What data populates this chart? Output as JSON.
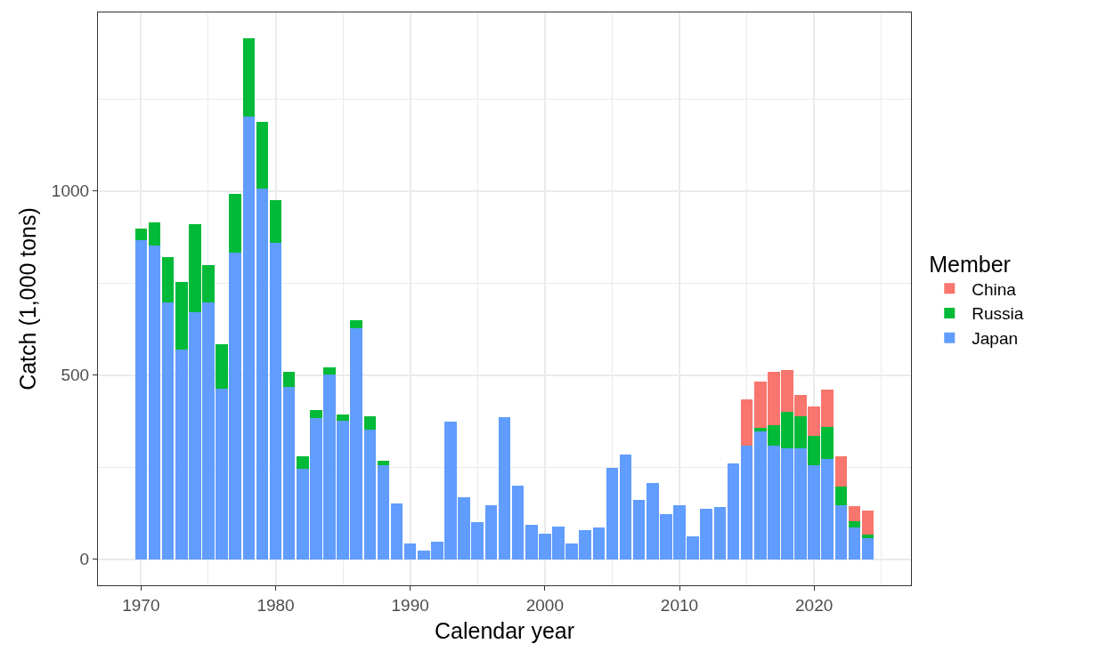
{
  "chart_data": {
    "type": "bar",
    "stacked": true,
    "xlabel": "Calendar year",
    "ylabel": "Catch (1,000 tons)",
    "legend_title": "Member",
    "legend": "right",
    "grid": true,
    "x": [
      1970,
      1971,
      1972,
      1973,
      1974,
      1975,
      1976,
      1977,
      1978,
      1979,
      1980,
      1981,
      1982,
      1983,
      1984,
      1985,
      1986,
      1987,
      1988,
      1989,
      1990,
      1991,
      1992,
      1993,
      1994,
      1995,
      1996,
      1997,
      1998,
      1999,
      2000,
      2001,
      2002,
      2003,
      2004,
      2005,
      2006,
      2007,
      2008,
      2009,
      2010,
      2011,
      2012,
      2013,
      2014,
      2015,
      2016,
      2017,
      2018,
      2019,
      2020,
      2021,
      2022,
      2023,
      2024
    ],
    "xlim": [
      1966.8,
      2027.2
    ],
    "xticks": [
      1970,
      1980,
      1990,
      2000,
      2010,
      2020
    ],
    "ylim": [
      -71,
      1485
    ],
    "yticks": [
      0,
      500,
      1000
    ],
    "series": [
      {
        "name": "Japan",
        "color": "#619cff",
        "values": [
          866,
          853,
          697,
          570,
          670,
          698,
          462,
          833,
          1202,
          1006,
          860,
          467,
          246,
          384,
          501,
          375,
          627,
          352,
          255,
          151,
          42,
          23,
          48,
          374,
          169,
          101,
          147,
          385,
          199,
          94,
          69,
          89,
          42,
          80,
          85,
          249,
          284,
          160,
          207,
          123,
          147,
          63,
          137,
          142,
          260,
          308,
          347,
          308,
          301,
          301,
          256,
          271,
          146,
          85,
          58
        ]
      },
      {
        "name": "Russia",
        "color": "#00ba38",
        "values": [
          31,
          63,
          123,
          183,
          240,
          102,
          122,
          159,
          212,
          183,
          115,
          42,
          34,
          20,
          20,
          17,
          23,
          35,
          13,
          null,
          null,
          null,
          null,
          null,
          null,
          null,
          null,
          null,
          null,
          null,
          null,
          null,
          null,
          null,
          null,
          null,
          null,
          null,
          null,
          null,
          null,
          null,
          null,
          null,
          null,
          null,
          9,
          55,
          99,
          87,
          80,
          87,
          50,
          17,
          8
        ]
      },
      {
        "name": "China",
        "color": "#f8766d",
        "values": [
          null,
          null,
          null,
          null,
          null,
          null,
          null,
          null,
          null,
          null,
          null,
          null,
          null,
          null,
          null,
          null,
          null,
          null,
          null,
          null,
          null,
          null,
          null,
          null,
          null,
          null,
          null,
          null,
          null,
          null,
          null,
          null,
          null,
          null,
          null,
          null,
          null,
          null,
          null,
          null,
          null,
          null,
          null,
          null,
          null,
          126,
          126,
          146,
          114,
          58,
          78,
          103,
          84,
          41,
          67
        ]
      }
    ]
  }
}
